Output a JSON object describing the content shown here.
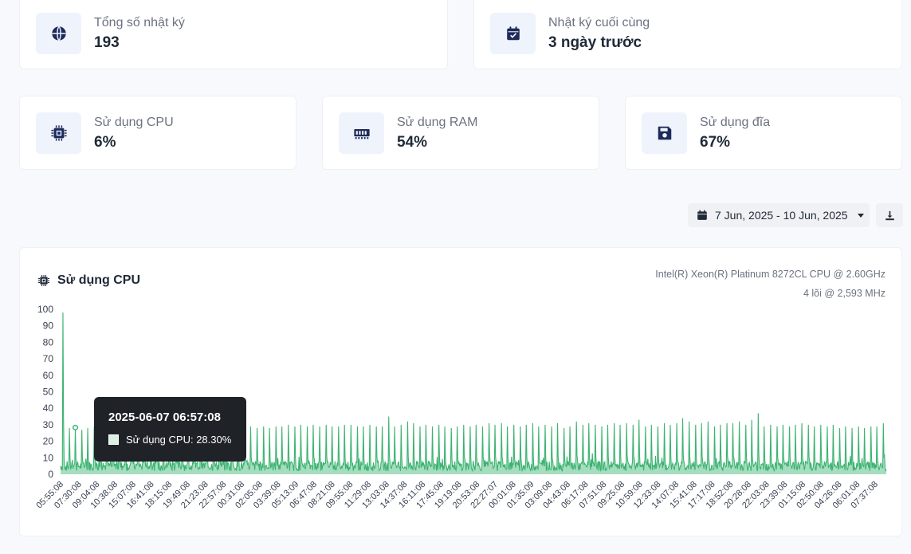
{
  "stats_top": [
    {
      "label": "Tổng số nhật ký",
      "value": "193",
      "icon": "globe-icon"
    },
    {
      "label": "Nhật ký cuối cùng",
      "value": "3 ngày trước",
      "icon": "calendar-check-icon"
    }
  ],
  "stats_usage": [
    {
      "label": "Sử dụng CPU",
      "value": "6%",
      "icon": "cpu-icon"
    },
    {
      "label": "Sử dụng RAM",
      "value": "54%",
      "icon": "memory-icon"
    },
    {
      "label": "Sử dụng đĩa",
      "value": "67%",
      "icon": "floppy-disk-icon"
    }
  ],
  "filter": {
    "date_range": "7 Jun, 2025 - 10 Jun, 2025",
    "download_icon": "download-icon"
  },
  "chart_panel": {
    "title": "Sử dụng CPU",
    "cpu_model": "Intel(R) Xeon(R) Platinum 8272CL CPU @ 2.60GHz",
    "cpu_cores": "4 lõi @ 2,593 MHz"
  },
  "tooltip": {
    "title": "2025-06-07 06:57:08",
    "label": "Sử dụng CPU: 28.30%"
  },
  "colors": {
    "accent": "#1e2a5a",
    "series": "#3cb371",
    "tooltip_bg": "#1f2328"
  },
  "chart_data": {
    "type": "area",
    "title": "",
    "xlabel": "",
    "ylabel": "",
    "ylim": [
      0,
      100
    ],
    "yticks": [
      0,
      10,
      20,
      30,
      40,
      50,
      60,
      70,
      80,
      90,
      100
    ],
    "x_tick_labels": [
      "05:55:08",
      "07:30:08",
      "09:04:08",
      "10:38:08",
      "15:07:08",
      "16:41:08",
      "18:15:08",
      "19:49:08",
      "21:23:08",
      "22:57:08",
      "00:31:08",
      "02:05:08",
      "03:39:08",
      "05:13:09",
      "06:47:08",
      "08:21:08",
      "09:55:08",
      "11:29:08",
      "13:03:08",
      "14:37:08",
      "16:11:08",
      "17:45:08",
      "19:19:08",
      "20:53:08",
      "22:27:07",
      "00:01:08",
      "01:35:09",
      "03:09:08",
      "04:43:08",
      "06:17:08",
      "07:51:08",
      "09:25:08",
      "10:59:08",
      "12:33:08",
      "14:07:08",
      "15:41:08",
      "17:17:08",
      "18:52:08",
      "20:28:08",
      "22:03:08",
      "23:39:08",
      "01:15:08",
      "02:50:08",
      "04:26:08",
      "06:01:08",
      "07:37:08"
    ],
    "series": [
      {
        "baseline_range": [
          2,
          8
        ],
        "spikes": [
          98,
          28,
          28,
          27,
          28,
          29,
          28,
          29,
          28,
          28,
          29,
          28,
          29,
          28,
          29,
          28,
          29,
          29,
          28,
          28,
          29,
          28,
          29,
          28,
          29,
          28,
          29,
          28,
          29,
          28,
          29,
          28,
          29,
          28,
          29,
          29,
          30,
          29,
          30,
          29,
          30,
          29,
          30,
          29,
          29,
          30,
          30,
          29,
          29,
          30,
          29,
          29,
          35,
          29,
          30,
          32,
          31,
          29,
          30,
          29,
          30,
          29,
          28,
          29,
          30,
          29,
          30,
          29,
          31,
          30,
          31,
          29,
          30,
          29,
          30,
          31,
          29,
          30,
          29,
          31,
          28,
          29,
          32,
          30,
          31,
          30,
          29,
          30,
          31,
          30,
          31,
          30,
          33,
          29,
          30,
          29,
          31,
          30,
          31,
          34,
          32,
          30,
          31,
          32,
          29,
          30,
          31,
          31,
          32,
          30,
          33,
          37,
          29,
          30,
          29,
          30,
          29,
          30,
          31,
          30,
          29,
          30,
          29,
          30,
          28,
          29,
          28,
          29,
          28,
          29,
          29,
          31
        ],
        "highlighted_point": {
          "x": "2025-06-07 06:57:08",
          "y": 28.3
        }
      }
    ]
  }
}
